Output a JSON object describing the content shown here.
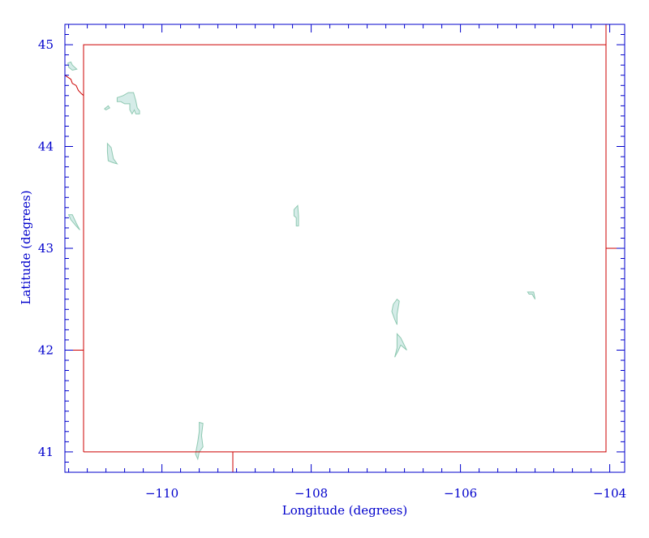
{
  "map": {
    "xlabel": "Longitude (degrees)",
    "ylabel": "Latitude (degrees)",
    "x_ticks": [
      {
        "value": -110,
        "label": "−110"
      },
      {
        "value": -108,
        "label": "−108"
      },
      {
        "value": -106,
        "label": "−106"
      },
      {
        "value": -104,
        "label": "−104"
      }
    ],
    "y_ticks": [
      {
        "value": 41,
        "label": "41"
      },
      {
        "value": 42,
        "label": "42"
      },
      {
        "value": 43,
        "label": "43"
      },
      {
        "value": 44,
        "label": "44"
      },
      {
        "value": 45,
        "label": "45"
      }
    ],
    "xlim": [
      -111.3,
      -103.8
    ],
    "ylim": [
      40.8,
      45.2
    ],
    "colors": {
      "axis": "#0000cc",
      "border": "#cc0000",
      "water_fill": "#d5ece8",
      "water_stroke": "#8fc9b2",
      "background": "#ffffff"
    },
    "border_lines": [
      [
        [
          -111.05,
          41.0
        ],
        [
          -111.05,
          45.0
        ],
        [
          -104.05,
          45.0
        ],
        [
          -104.05,
          41.0
        ],
        [
          -111.05,
          41.0
        ]
      ],
      [
        [
          -111.3,
          42.0
        ],
        [
          -111.05,
          42.0
        ]
      ],
      [
        [
          -109.05,
          41.0
        ],
        [
          -109.05,
          40.8
        ]
      ],
      [
        [
          -104.05,
          43.0
        ],
        [
          -103.8,
          43.0
        ]
      ],
      [
        [
          -104.05,
          45.0
        ],
        [
          -104.05,
          45.2
        ]
      ],
      [
        [
          -111.3,
          44.7
        ],
        [
          -111.22,
          44.66
        ],
        [
          -111.2,
          44.62
        ],
        [
          -111.15,
          44.6
        ],
        [
          -111.12,
          44.55
        ],
        [
          -111.08,
          44.52
        ],
        [
          -111.05,
          44.5
        ]
      ]
    ],
    "lakes": [
      [
        [
          -110.6,
          44.48
        ],
        [
          -110.52,
          44.5
        ],
        [
          -110.45,
          44.53
        ],
        [
          -110.38,
          44.53
        ],
        [
          -110.35,
          44.45
        ],
        [
          -110.33,
          44.38
        ],
        [
          -110.3,
          44.35
        ],
        [
          -110.3,
          44.32
        ],
        [
          -110.35,
          44.32
        ],
        [
          -110.37,
          44.36
        ],
        [
          -110.4,
          44.32
        ],
        [
          -110.43,
          44.36
        ],
        [
          -110.43,
          44.42
        ],
        [
          -110.5,
          44.42
        ],
        [
          -110.55,
          44.44
        ],
        [
          -110.6,
          44.44
        ]
      ],
      [
        [
          -110.77,
          44.37
        ],
        [
          -110.72,
          44.4
        ],
        [
          -110.7,
          44.38
        ],
        [
          -110.75,
          44.36
        ]
      ],
      [
        [
          -110.73,
          44.03
        ],
        [
          -110.68,
          43.99
        ],
        [
          -110.65,
          43.88
        ],
        [
          -110.6,
          43.83
        ],
        [
          -110.65,
          43.84
        ],
        [
          -110.72,
          43.86
        ],
        [
          -110.73,
          43.95
        ]
      ],
      [
        [
          -111.22,
          44.83
        ],
        [
          -111.2,
          44.8
        ],
        [
          -111.14,
          44.76
        ],
        [
          -111.2,
          44.75
        ],
        [
          -111.25,
          44.78
        ],
        [
          -111.26,
          44.82
        ]
      ],
      [
        [
          -111.25,
          43.33
        ],
        [
          -111.2,
          43.33
        ],
        [
          -111.15,
          43.25
        ],
        [
          -111.1,
          43.18
        ],
        [
          -111.15,
          43.22
        ],
        [
          -111.22,
          43.28
        ]
      ],
      [
        [
          -108.23,
          43.38
        ],
        [
          -108.18,
          43.42
        ],
        [
          -108.17,
          43.32
        ],
        [
          -108.17,
          43.22
        ],
        [
          -108.2,
          43.22
        ],
        [
          -108.2,
          43.3
        ],
        [
          -108.23,
          43.32
        ]
      ],
      [
        [
          -106.9,
          42.45
        ],
        [
          -106.85,
          42.5
        ],
        [
          -106.82,
          42.48
        ],
        [
          -106.85,
          42.35
        ],
        [
          -106.85,
          42.25
        ],
        [
          -106.88,
          42.3
        ],
        [
          -106.92,
          42.38
        ]
      ],
      [
        [
          -106.85,
          42.16
        ],
        [
          -106.8,
          42.12
        ],
        [
          -106.72,
          42.0
        ],
        [
          -106.8,
          42.05
        ],
        [
          -106.83,
          42.0
        ],
        [
          -106.88,
          41.93
        ],
        [
          -106.85,
          42.02
        ]
      ],
      [
        [
          -105.1,
          42.57
        ],
        [
          -105.02,
          42.57
        ],
        [
          -105.0,
          42.5
        ],
        [
          -105.04,
          42.55
        ],
        [
          -105.08,
          42.55
        ]
      ],
      [
        [
          -109.5,
          41.29
        ],
        [
          -109.45,
          41.28
        ],
        [
          -109.47,
          41.16
        ],
        [
          -109.45,
          41.05
        ],
        [
          -109.5,
          41.0
        ],
        [
          -109.52,
          40.93
        ],
        [
          -109.55,
          40.98
        ],
        [
          -109.52,
          41.1
        ],
        [
          -109.5,
          41.2
        ]
      ]
    ]
  }
}
